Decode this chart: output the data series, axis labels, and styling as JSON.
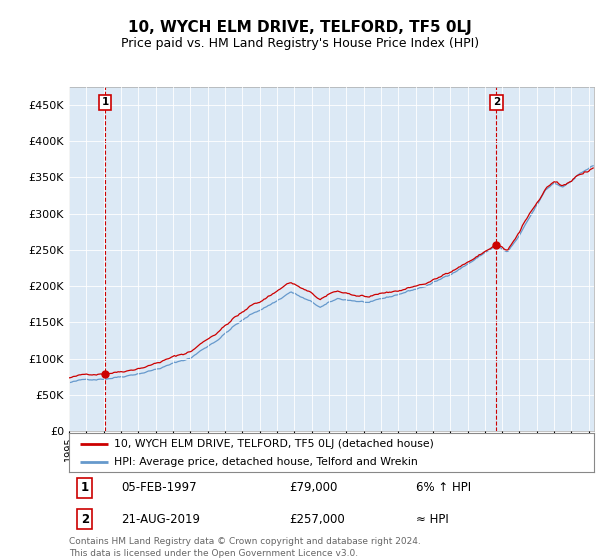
{
  "title": "10, WYCH ELM DRIVE, TELFORD, TF5 0LJ",
  "subtitle": "Price paid vs. HM Land Registry's House Price Index (HPI)",
  "bg_color": "#dce9f5",
  "red_color": "#cc0000",
  "blue_color": "#6699cc",
  "ylim": [
    0,
    475000
  ],
  "yticks": [
    0,
    50000,
    100000,
    150000,
    200000,
    250000,
    300000,
    350000,
    400000,
    450000
  ],
  "xlim_start": 1995.0,
  "xlim_end": 2025.3,
  "sale1_date": 1997.09,
  "sale1_price": 79000,
  "sale2_date": 2019.64,
  "sale2_price": 257000,
  "legend_line1": "10, WYCH ELM DRIVE, TELFORD, TF5 0LJ (detached house)",
  "legend_line2": "HPI: Average price, detached house, Telford and Wrekin",
  "annotation1_date": "05-FEB-1997",
  "annotation1_price": "£79,000",
  "annotation1_hpi": "6% ↑ HPI",
  "annotation2_date": "21-AUG-2019",
  "annotation2_price": "£257,000",
  "annotation2_hpi": "≈ HPI",
  "footer": "Contains HM Land Registry data © Crown copyright and database right 2024.\nThis data is licensed under the Open Government Licence v3.0."
}
